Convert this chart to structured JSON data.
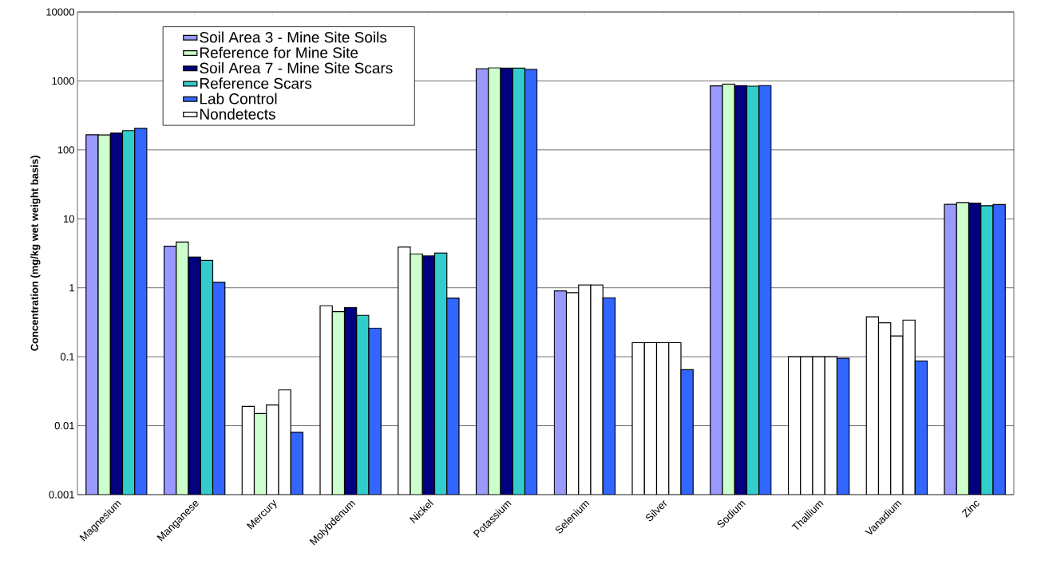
{
  "chart_data": {
    "type": "bar",
    "ylabel": "Concentration (mg/kg wet weight basis)",
    "log": true,
    "grid": "y",
    "legend": "top left",
    "categories": [
      "Magnesium",
      "Manganese",
      "Mercury",
      "Molybdenum",
      "Nickel",
      "Potassium",
      "Selenium",
      "Silver",
      "Sodium",
      "Thallium",
      "Vanadium",
      "Zinc"
    ],
    "ylim": [
      0.001,
      10000
    ],
    "yticks": [
      0.001,
      0.01,
      0.1,
      1,
      10,
      100,
      1000,
      10000
    ],
    "series": [
      {
        "name": "Soil Area 3 - Mine Site Soils",
        "color": "#9999ff",
        "values": [
          166,
          4.0,
          0.019,
          0.55,
          3.9,
          1500,
          0.9,
          0.16,
          850,
          0.1,
          0.38,
          16.2
        ],
        "colors": [
          "#9999ff",
          "#9999ff",
          "#ffffff",
          "#ffffff",
          "#ffffff",
          "#9999ff",
          "#9999ff",
          "#ffffff",
          "#9999ff",
          "#ffffff",
          "#ffffff",
          "#9999ff"
        ]
      },
      {
        "name": "Reference for Mine Site",
        "color": "#ccffcc",
        "values": [
          165,
          4.6,
          0.015,
          0.45,
          3.1,
          1550,
          0.85,
          0.16,
          900,
          0.1,
          0.31,
          17.2
        ],
        "colors": [
          "#ccffcc",
          "#ccffcc",
          "#ccffcc",
          "#ccffcc",
          "#ccffcc",
          "#ccffcc",
          "#ffffff",
          "#ffffff",
          "#ccffcc",
          "#ffffff",
          "#ffffff",
          "#ccffcc"
        ]
      },
      {
        "name": "Soil Area 7 - Mine Site Scars",
        "color": "#000080",
        "values": [
          175,
          2.8,
          0.02,
          0.52,
          2.9,
          1530,
          1.1,
          0.16,
          860,
          0.1,
          0.2,
          16.9
        ],
        "colors": [
          "#000080",
          "#000080",
          "#ffffff",
          "#000080",
          "#000080",
          "#000080",
          "#ffffff",
          "#ffffff",
          "#000080",
          "#ffffff",
          "#ffffff",
          "#000080"
        ]
      },
      {
        "name": "Reference Scars",
        "color": "#33cccc",
        "values": [
          190,
          2.5,
          0.033,
          0.4,
          3.2,
          1530,
          1.1,
          0.16,
          840,
          0.1,
          0.34,
          15.5
        ],
        "colors": [
          "#33cccc",
          "#33cccc",
          "#ffffff",
          "#33cccc",
          "#33cccc",
          "#33cccc",
          "#ffffff",
          "#ffffff",
          "#33cccc",
          "#ffffff",
          "#ffffff",
          "#33cccc"
        ]
      },
      {
        "name": "Lab Control",
        "color": "#3366ff",
        "values": [
          205,
          1.2,
          0.008,
          0.26,
          0.71,
          1470,
          0.72,
          0.065,
          860,
          0.095,
          0.087,
          16.1
        ]
      },
      {
        "name": "Nondetects",
        "color": "#ffffff",
        "values": [
          null,
          null,
          null,
          null,
          null,
          null,
          null,
          null,
          null,
          null,
          null,
          null
        ]
      }
    ]
  }
}
